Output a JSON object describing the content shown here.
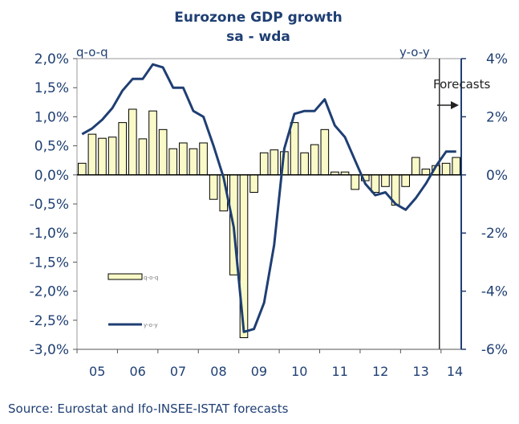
{
  "chart_data": {
    "type": "bar+line",
    "title": "Eurozone GDP growth",
    "subtitle": "sa - wda",
    "left_axis": {
      "label": "q-o-q",
      "ylim": [
        -3.0,
        2.0
      ],
      "ticks": [
        "2,0%",
        "1,5%",
        "1,0%",
        "0,5%",
        "0,0%",
        "-0,5%",
        "-1,0%",
        "-1,5%",
        "-2,0%",
        "-2,5%",
        "-3,0%"
      ],
      "tick_values": [
        2.0,
        1.5,
        1.0,
        0.5,
        0.0,
        -0.5,
        -1.0,
        -1.5,
        -2.0,
        -2.5,
        -3.0
      ]
    },
    "right_axis": {
      "label": "y-o-y",
      "ylim": [
        -6,
        4
      ],
      "ticks": [
        "4%",
        "2%",
        "0%",
        "-2%",
        "-4%",
        "-6%"
      ],
      "tick_values": [
        4,
        2,
        0,
        -2,
        -4,
        -6
      ]
    },
    "x_ticks": [
      "05",
      "06",
      "07",
      "08",
      "09",
      "10",
      "11",
      "12",
      "13",
      "14"
    ],
    "forecast_label": "Forecasts",
    "forecast_start_index": 36,
    "series": [
      {
        "name": "q-o-q",
        "type": "bar",
        "axis": "left",
        "color": "#fafac8",
        "values": [
          0.2,
          0.7,
          0.63,
          0.65,
          0.9,
          1.13,
          0.62,
          1.1,
          0.78,
          0.45,
          0.55,
          0.45,
          0.55,
          -0.42,
          -0.62,
          -1.72,
          -2.8,
          -0.3,
          0.38,
          0.43,
          0.4,
          0.9,
          0.38,
          0.52,
          0.78,
          0.05,
          0.05,
          -0.25,
          -0.1,
          -0.3,
          -0.2,
          -0.52,
          -0.2,
          0.3,
          0.1,
          0.16,
          0.2,
          0.3
        ]
      },
      {
        "name": "y-o-y",
        "type": "line",
        "axis": "right",
        "color": "#1f3f73",
        "values": [
          1.4,
          1.6,
          1.9,
          2.3,
          2.9,
          3.3,
          3.3,
          3.8,
          3.7,
          3.0,
          3.0,
          2.2,
          2.0,
          1.0,
          -0.1,
          -1.8,
          -5.4,
          -5.3,
          -4.4,
          -2.4,
          0.9,
          2.1,
          2.2,
          2.2,
          2.6,
          1.7,
          1.3,
          0.5,
          -0.3,
          -0.7,
          -0.6,
          -1.0,
          -1.2,
          -0.8,
          -0.3,
          0.3,
          0.8,
          0.8
        ]
      }
    ],
    "legend": [
      "q-o-q",
      "y-o-y"
    ]
  },
  "source": "Source: Eurostat and Ifo-INSEE-ISTAT forecasts"
}
